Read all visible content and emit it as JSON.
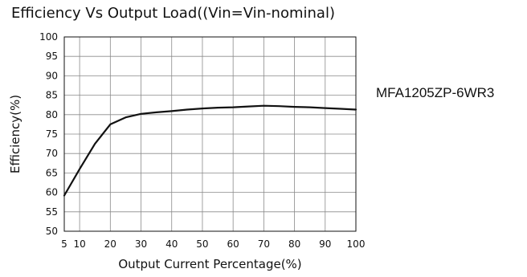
{
  "chart_data": {
    "type": "line",
    "title": "Efficiency Vs Output Load((Vin=Vin-nominal)",
    "xlabel": "Output Current Percentage(%)",
    "ylabel": "Efficiency(%)",
    "annotation": "MFA1205ZP-6WR3",
    "xlim": [
      5,
      100
    ],
    "ylim": [
      50,
      100
    ],
    "x_ticks": [
      5,
      10,
      20,
      30,
      40,
      50,
      60,
      70,
      80,
      90,
      100
    ],
    "y_ticks": [
      50,
      55,
      60,
      65,
      70,
      75,
      80,
      85,
      90,
      95,
      100
    ],
    "grid": true,
    "series": [
      {
        "color": "#111111",
        "x": [
          5,
          10,
          15,
          20,
          25,
          30,
          35,
          40,
          45,
          50,
          55,
          60,
          65,
          70,
          75,
          80,
          85,
          90,
          95,
          100
        ],
        "y": [
          59.2,
          66.0,
          72.5,
          77.5,
          79.3,
          80.2,
          80.6,
          80.9,
          81.3,
          81.6,
          81.8,
          81.9,
          82.1,
          82.3,
          82.2,
          82.0,
          81.9,
          81.7,
          81.5,
          81.3
        ]
      }
    ]
  }
}
